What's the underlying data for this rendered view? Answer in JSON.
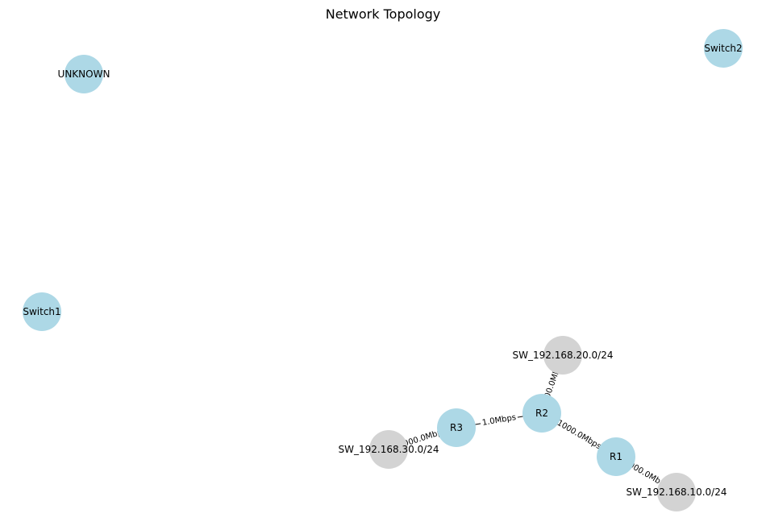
{
  "title": "Network Topology",
  "colors": {
    "router": "#add8e6",
    "subnet": "#d3d3d3",
    "edge": "#000000",
    "label_bg": "#ffffff"
  },
  "nodes": [
    {
      "id": "UNKNOWN",
      "label": "UNKNOWN",
      "kind": "router"
    },
    {
      "id": "Switch2",
      "label": "Switch2",
      "kind": "router"
    },
    {
      "id": "Switch1",
      "label": "Switch1",
      "kind": "router"
    },
    {
      "id": "SW_192.168.20.0/24",
      "label": "SW_192.168.20.0/24",
      "kind": "subnet"
    },
    {
      "id": "R2",
      "label": "R2",
      "kind": "router"
    },
    {
      "id": "R3",
      "label": "R3",
      "kind": "router"
    },
    {
      "id": "R1",
      "label": "R1",
      "kind": "router"
    },
    {
      "id": "SW_192.168.30.0/24",
      "label": "SW_192.168.30.0/24",
      "kind": "subnet"
    },
    {
      "id": "SW_192.168.10.0/24",
      "label": "SW_192.168.10.0/24",
      "kind": "subnet"
    }
  ],
  "edges": [
    {
      "source": "R2",
      "target": "SW_192.168.20.0/24",
      "label": "1000.0Mbps"
    },
    {
      "source": "R3",
      "target": "R2",
      "label": "1.0Mbps"
    },
    {
      "source": "R2",
      "target": "R1",
      "label": "1000.0Mbps"
    },
    {
      "source": "R3",
      "target": "SW_192.168.30.0/24",
      "label": "1000.0Mbps"
    },
    {
      "source": "R1",
      "target": "SW_192.168.10.0/24",
      "label": "1000.0Mbps"
    }
  ]
}
